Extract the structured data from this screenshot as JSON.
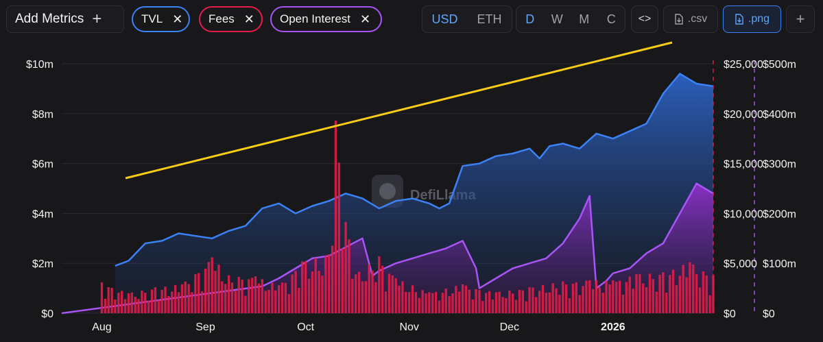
{
  "toolbar": {
    "add_metrics_label": "Add Metrics",
    "metrics": [
      {
        "label": "TVL",
        "color": "#3b82f6"
      },
      {
        "label": "Fees",
        "color": "#e11d48"
      },
      {
        "label": "Open Interest",
        "color": "#a855f7"
      }
    ],
    "currency_options": [
      "USD",
      "ETH"
    ],
    "currency_selected": "USD",
    "period_options": [
      "D",
      "W",
      "M",
      "C"
    ],
    "period_selected": "D",
    "embed_label": "<>",
    "csv_label": ".csv",
    "png_label": ".png",
    "more_label": "+"
  },
  "watermark": "DefiLlama",
  "chart_data": {
    "type": "line",
    "x_ticks": [
      "Aug",
      "Sep",
      "Oct",
      "Nov",
      "Dec",
      "2026"
    ],
    "x_range": [
      "2025-07-20",
      "2026-01-30"
    ],
    "axes": {
      "tvl": {
        "ticks": [
          "$0",
          "$2m",
          "$4m",
          "$6m",
          "$8m",
          "$10m"
        ],
        "ylim": [
          0,
          10000000
        ]
      },
      "fees": {
        "ticks": [
          "$0",
          "$5,000",
          "$10,000",
          "$15,000",
          "$20,000",
          "$25,000"
        ],
        "ylim": [
          0,
          25000
        ]
      },
      "open_interest": {
        "ticks": [
          "$0",
          "$100m",
          "$200m",
          "$300m",
          "$400m",
          "$500m"
        ],
        "ylim": [
          0,
          500000000
        ]
      }
    },
    "series": [
      {
        "name": "TVL",
        "type": "area",
        "axis": "tvl",
        "color": "#3b82f6",
        "x": [
          16,
          20,
          25,
          30,
          35,
          40,
          45,
          50,
          55,
          60,
          65,
          70,
          75,
          80,
          85,
          90,
          95,
          100,
          105,
          110,
          113,
          116,
          120,
          125,
          130,
          135,
          140,
          143,
          146,
          150,
          155,
          160,
          165,
          170,
          175,
          180,
          185,
          190,
          195
        ],
        "values": [
          1.9,
          2.1,
          2.8,
          2.9,
          3.2,
          3.1,
          3.0,
          3.3,
          3.5,
          4.2,
          4.4,
          4.0,
          4.3,
          4.5,
          4.8,
          4.6,
          4.2,
          4.5,
          4.6,
          4.4,
          4.2,
          4.4,
          5.9,
          6.0,
          6.3,
          6.4,
          6.6,
          6.2,
          6.7,
          6.8,
          6.6,
          7.2,
          7.0,
          7.3,
          7.6,
          8.8,
          9.6,
          9.2,
          9.1
        ]
      },
      {
        "name": "Open Interest",
        "type": "area",
        "axis": "open_interest",
        "color": "#a855f7",
        "x": [
          0,
          20,
          40,
          60,
          65,
          70,
          75,
          80,
          90,
          93,
          95,
          100,
          105,
          110,
          115,
          120,
          124,
          125,
          130,
          135,
          140,
          145,
          150,
          155,
          158,
          160,
          163,
          165,
          170,
          175,
          180,
          185,
          190,
          195
        ],
        "values": [
          0,
          18,
          36,
          54,
          70,
          90,
          110,
          115,
          150,
          75,
          85,
          100,
          110,
          120,
          130,
          145,
          90,
          50,
          70,
          90,
          100,
          110,
          140,
          190,
          235,
          50,
          65,
          80,
          90,
          120,
          140,
          200,
          260,
          240
        ]
      },
      {
        "name": "Fees",
        "type": "bar",
        "axis": "fees",
        "color": "#e11d48",
        "x": [
          0,
          12,
          20,
          28,
          36,
          45,
          50,
          58,
          65,
          72,
          80,
          82,
          86,
          88,
          95,
          100,
          110,
          120,
          130,
          140,
          150,
          158,
          165,
          172,
          180,
          188,
          195
        ],
        "values": [
          0,
          3100,
          2000,
          2600,
          2900,
          5600,
          3800,
          3700,
          2800,
          5200,
          5900,
          19300,
          7400,
          3900,
          5700,
          3500,
          2100,
          2900,
          2100,
          2600,
          3200,
          3300,
          3300,
          3900,
          4100,
          5100,
          3800
        ]
      }
    ],
    "annotations": [
      {
        "type": "trendline",
        "color": "#facc15"
      }
    ],
    "grid": true,
    "legend": "top"
  }
}
